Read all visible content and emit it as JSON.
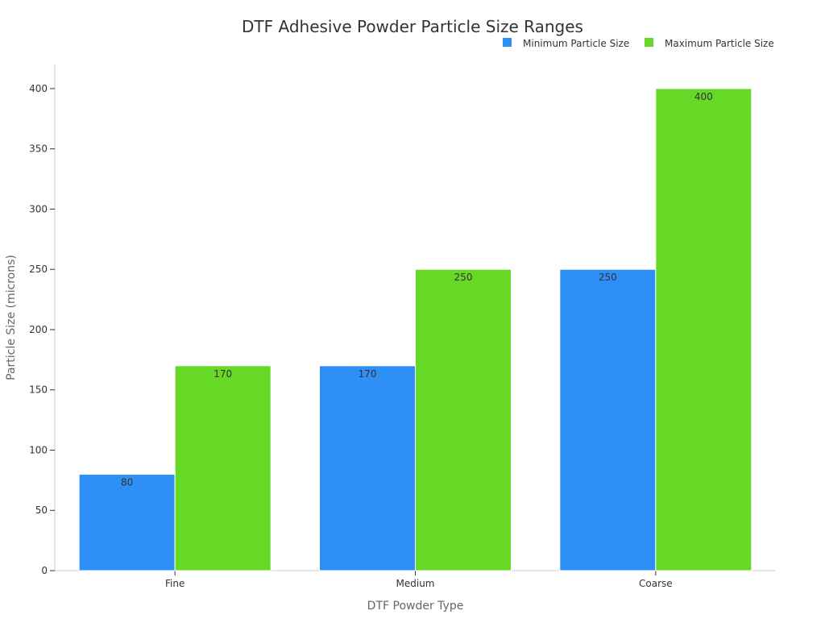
{
  "chart_data": {
    "type": "bar",
    "title": "DTF Adhesive Powder Particle Size Ranges",
    "xlabel": "DTF Powder Type",
    "ylabel": "Particle Size (microns)",
    "categories": [
      "Fine",
      "Medium",
      "Coarse"
    ],
    "series": [
      {
        "name": "Minimum Particle Size",
        "color": "#2e8ff6",
        "values": [
          80,
          170,
          250
        ]
      },
      {
        "name": "Maximum Particle Size",
        "color": "#66d926",
        "values": [
          170,
          250,
          400
        ]
      }
    ],
    "ylim": [
      0,
      420
    ],
    "yticks": [
      0,
      50,
      100,
      150,
      200,
      250,
      300,
      350,
      400
    ],
    "grid": false,
    "legend_position": "top-right"
  }
}
